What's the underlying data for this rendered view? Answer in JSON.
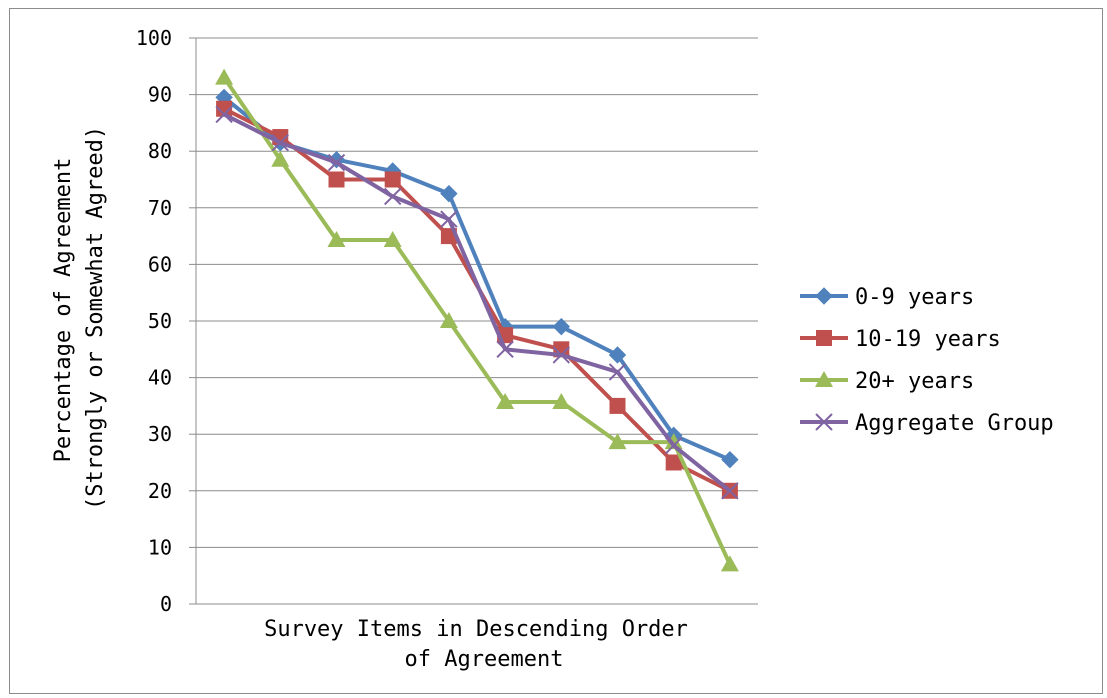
{
  "chart_data": {
    "type": "line",
    "title": "",
    "xlabel_lines": [
      "Survey Items in Descending Order",
      "of Agreement"
    ],
    "ylabel_lines": [
      "Percentage of Agreement",
      "(Strongly or Somewhat Agreed)"
    ],
    "ylim": [
      0,
      100
    ],
    "yticks": [
      0,
      10,
      20,
      30,
      40,
      50,
      60,
      70,
      80,
      90,
      100
    ],
    "grid": true,
    "legend_position": "right",
    "x": [
      1,
      2,
      3,
      4,
      5,
      6,
      7,
      8,
      9,
      10
    ],
    "series": [
      {
        "name": "0-9 years",
        "color": "#4f81bd",
        "marker": "diamond",
        "values": [
          89.5,
          81.5,
          78.5,
          76.5,
          72.5,
          49,
          49,
          44,
          29.8,
          25.5
        ]
      },
      {
        "name": "10-19 years",
        "color": "#c0504d",
        "marker": "square",
        "values": [
          87.5,
          82.5,
          75,
          75,
          65,
          47.5,
          45,
          35,
          25,
          20
        ]
      },
      {
        "name": "20+ years",
        "color": "#9bbb59",
        "marker": "triangle",
        "values": [
          93,
          78.5,
          64.3,
          64.3,
          50,
          35.7,
          35.7,
          28.6,
          28.6,
          7
        ]
      },
      {
        "name": "Aggregate Group",
        "color": "#8064a2",
        "marker": "x",
        "values": [
          86.5,
          81.5,
          78,
          72,
          68,
          45,
          44,
          41,
          28,
          20
        ]
      }
    ]
  }
}
